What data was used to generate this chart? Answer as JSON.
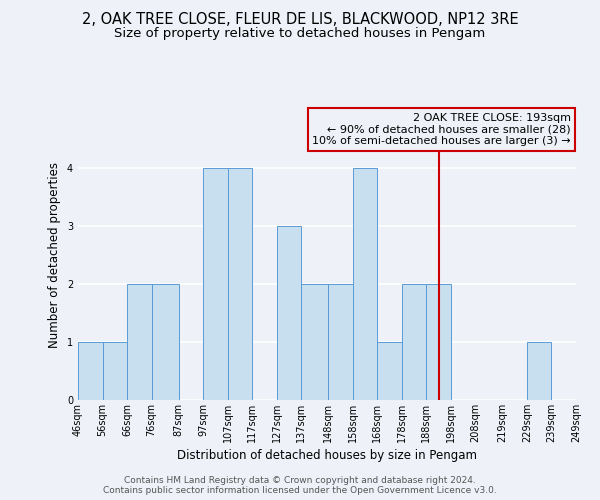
{
  "title": "2, OAK TREE CLOSE, FLEUR DE LIS, BLACKWOOD, NP12 3RE",
  "subtitle": "Size of property relative to detached houses in Pengam",
  "xlabel": "Distribution of detached houses by size in Pengam",
  "ylabel": "Number of detached properties",
  "bin_edges": [
    46,
    56,
    66,
    76,
    87,
    97,
    107,
    117,
    127,
    137,
    148,
    158,
    168,
    178,
    188,
    198,
    208,
    219,
    229,
    239,
    249
  ],
  "bin_counts": [
    1,
    1,
    2,
    2,
    0,
    4,
    4,
    0,
    3,
    2,
    2,
    4,
    1,
    2,
    2,
    0,
    0,
    0,
    1,
    0
  ],
  "bar_color": "#c8dff0",
  "bar_edge_color": "#5b9bd5",
  "vline_x": 193,
  "vline_color": "#cc0000",
  "annotation_title": "2 OAK TREE CLOSE: 193sqm",
  "annotation_line1": "← 90% of detached houses are smaller (28)",
  "annotation_line2": "10% of semi-detached houses are larger (3) →",
  "annotation_box_color": "#cc0000",
  "ylim": [
    0,
    5
  ],
  "yticks": [
    0,
    1,
    2,
    3,
    4
  ],
  "tick_labels": [
    "46sqm",
    "56sqm",
    "66sqm",
    "76sqm",
    "87sqm",
    "97sqm",
    "107sqm",
    "117sqm",
    "127sqm",
    "137sqm",
    "148sqm",
    "158sqm",
    "168sqm",
    "178sqm",
    "188sqm",
    "198sqm",
    "208sqm",
    "219sqm",
    "229sqm",
    "239sqm",
    "249sqm"
  ],
  "footer1": "Contains HM Land Registry data © Crown copyright and database right 2024.",
  "footer2": "Contains public sector information licensed under the Open Government Licence v3.0.",
  "background_color": "#eef2f8",
  "grid_color": "#ffffff",
  "title_fontsize": 10.5,
  "subtitle_fontsize": 9.5,
  "axis_label_fontsize": 8.5,
  "tick_fontsize": 7,
  "annotation_fontsize": 8,
  "footer_fontsize": 6.5
}
